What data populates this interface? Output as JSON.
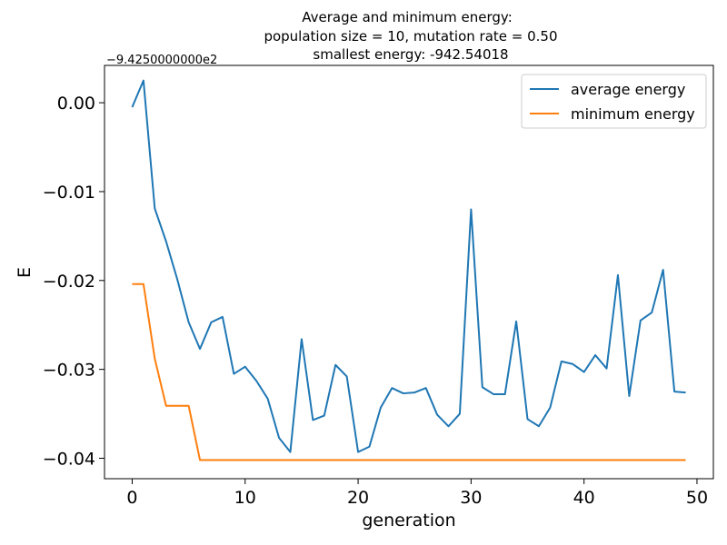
{
  "chart_data": {
    "type": "line",
    "title_lines": [
      "Average and minimum energy:",
      "population size = 10, mutation rate = 0.50",
      "smallest energy: -942.54018"
    ],
    "offset_text": "−9.4250000000e2",
    "xlabel": "generation",
    "ylabel": "E",
    "xlim": [
      -2.45,
      51.45
    ],
    "ylim": [
      -0.0423,
      0.0042
    ],
    "x_ticks": [
      0,
      10,
      20,
      30,
      40,
      50
    ],
    "x_tick_labels": [
      "0",
      "10",
      "20",
      "30",
      "40",
      "50"
    ],
    "y_ticks": [
      0.0,
      -0.01,
      -0.02,
      -0.03,
      -0.04
    ],
    "y_tick_labels": [
      "0.00",
      "−0.01",
      "−0.02",
      "−0.03",
      "−0.04"
    ],
    "legend_position": "top-right",
    "grid": false,
    "x": [
      0,
      1,
      2,
      3,
      4,
      5,
      6,
      7,
      8,
      9,
      10,
      11,
      12,
      13,
      14,
      15,
      16,
      17,
      18,
      19,
      20,
      21,
      22,
      23,
      24,
      25,
      26,
      27,
      28,
      29,
      30,
      31,
      32,
      33,
      34,
      35,
      36,
      37,
      38,
      39,
      40,
      41,
      42,
      43,
      44,
      45,
      46,
      47,
      48,
      49
    ],
    "series": [
      {
        "name": "average energy",
        "color": "#1f77b4",
        "values": [
          -0.0005,
          0.0025,
          -0.0119,
          -0.0156,
          -0.0199,
          -0.0247,
          -0.0277,
          -0.0247,
          -0.0241,
          -0.0305,
          -0.0297,
          -0.0313,
          -0.0333,
          -0.0377,
          -0.0393,
          -0.0266,
          -0.0357,
          -0.0352,
          -0.0295,
          -0.0308,
          -0.0393,
          -0.0387,
          -0.0343,
          -0.0321,
          -0.0327,
          -0.0326,
          -0.0321,
          -0.0351,
          -0.0364,
          -0.035,
          -0.012,
          -0.032,
          -0.0328,
          -0.0328,
          -0.0246,
          -0.0356,
          -0.0364,
          -0.0343,
          -0.0291,
          -0.0294,
          -0.0303,
          -0.0284,
          -0.0299,
          -0.0194,
          -0.033,
          -0.0245,
          -0.0236,
          -0.0188,
          -0.0325,
          -0.0326
        ]
      },
      {
        "name": "minimum energy",
        "color": "#ff7f0e",
        "values": [
          -0.0204,
          -0.0204,
          -0.0288,
          -0.0341,
          -0.0341,
          -0.0341,
          -0.0402,
          -0.0402,
          -0.0402,
          -0.0402,
          -0.0402,
          -0.0402,
          -0.0402,
          -0.0402,
          -0.0402,
          -0.0402,
          -0.0402,
          -0.0402,
          -0.0402,
          -0.0402,
          -0.0402,
          -0.0402,
          -0.0402,
          -0.0402,
          -0.0402,
          -0.0402,
          -0.0402,
          -0.0402,
          -0.0402,
          -0.0402,
          -0.0402,
          -0.0402,
          -0.0402,
          -0.0402,
          -0.0402,
          -0.0402,
          -0.0402,
          -0.0402,
          -0.0402,
          -0.0402,
          -0.0402,
          -0.0402,
          -0.0402,
          -0.0402,
          -0.0402,
          -0.0402,
          -0.0402,
          -0.0402,
          -0.0402,
          -0.0402
        ]
      }
    ]
  }
}
